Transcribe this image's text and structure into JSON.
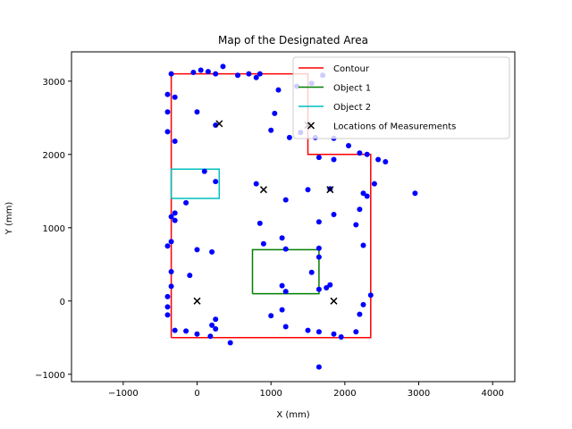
{
  "chart_data": {
    "type": "scatter",
    "title": "Map of the Designated Area",
    "xlabel": "X (mm)",
    "ylabel": "Y (mm)",
    "xlim": [
      -1700,
      4300
    ],
    "ylim": [
      -1100,
      3400
    ],
    "xticks": [
      -1000,
      0,
      1000,
      2000,
      3000,
      4000
    ],
    "yticks": [
      -1000,
      0,
      1000,
      2000,
      3000
    ],
    "xtick_labels": [
      "−1000",
      "0",
      "1000",
      "2000",
      "3000",
      "4000"
    ],
    "ytick_labels": [
      "−1000",
      "0",
      "1000",
      "2000",
      "3000"
    ],
    "grid": false,
    "legend_position": "top-right",
    "series": [
      {
        "name": "Contour",
        "type": "line",
        "color": "#ff0000",
        "x": [
          -350,
          -350,
          1500,
          1500,
          2350,
          2350,
          -350
        ],
        "y": [
          -500,
          3100,
          3100,
          2000,
          2000,
          -500,
          -500
        ]
      },
      {
        "name": "Object 1",
        "type": "line",
        "color": "#008000",
        "x": [
          750,
          1650,
          1650,
          750,
          750
        ],
        "y": [
          100,
          100,
          700,
          700,
          100
        ]
      },
      {
        "name": "Object 2",
        "type": "line",
        "color": "#00bfbf",
        "x": [
          -350,
          300,
          300,
          -350,
          -350
        ],
        "y": [
          1400,
          1400,
          1800,
          1800,
          1400
        ]
      },
      {
        "name": "Locations of Measurements",
        "type": "scatter",
        "marker": "x",
        "color": "#000000",
        "x": [
          300,
          1500,
          900,
          1800,
          0,
          1850
        ],
        "y": [
          2420,
          2400,
          1520,
          1520,
          0,
          0
        ]
      },
      {
        "name": "",
        "type": "scatter",
        "marker": "dot",
        "color": "#0000ff",
        "x": [
          -350,
          -50,
          50,
          150,
          250,
          350,
          550,
          700,
          800,
          850,
          1100,
          1350,
          1550,
          1700,
          -400,
          -300,
          -400,
          0,
          250,
          1050,
          1000,
          1250,
          1400,
          1600,
          1850,
          2050,
          2200,
          -400,
          -300,
          1650,
          1850,
          2300,
          2450,
          2550,
          2950,
          2400,
          2250,
          100,
          250,
          800,
          -150,
          -300,
          1200,
          1500,
          1800,
          2300,
          -350,
          -300,
          850,
          1150,
          1650,
          1850,
          2200,
          2150,
          2250,
          -400,
          -350,
          0,
          200,
          900,
          1200,
          1650,
          -350,
          -100,
          1550,
          1650,
          -350,
          1150,
          1800,
          1200,
          1650,
          1750,
          -400,
          2350,
          -400,
          -400,
          1000,
          1150,
          2200,
          2250,
          250,
          200,
          -300,
          -150,
          0,
          250,
          1200,
          1500,
          1650,
          1850,
          1950,
          2150,
          450,
          180,
          1650
        ],
        "y": [
          3100,
          3120,
          3150,
          3130,
          3100,
          3200,
          3080,
          3100,
          3050,
          3100,
          2880,
          2930,
          2970,
          3080,
          2820,
          2780,
          2580,
          2580,
          2400,
          2560,
          2330,
          2230,
          2300,
          2230,
          2220,
          2120,
          2020,
          2310,
          2180,
          1960,
          1930,
          2000,
          1930,
          1900,
          1470,
          1600,
          1470,
          1770,
          1630,
          1600,
          1340,
          1200,
          1380,
          1520,
          1530,
          1430,
          1150,
          1100,
          1060,
          860,
          1080,
          1180,
          1250,
          1040,
          760,
          750,
          810,
          700,
          670,
          780,
          710,
          720,
          400,
          350,
          390,
          600,
          200,
          210,
          220,
          130,
          160,
          180,
          60,
          80,
          -80,
          -190,
          -200,
          -120,
          -180,
          -50,
          -250,
          -330,
          -400,
          -410,
          -450,
          -380,
          -350,
          -400,
          -420,
          -450,
          -490,
          -420,
          -570,
          -480,
          -900
        ]
      }
    ]
  }
}
